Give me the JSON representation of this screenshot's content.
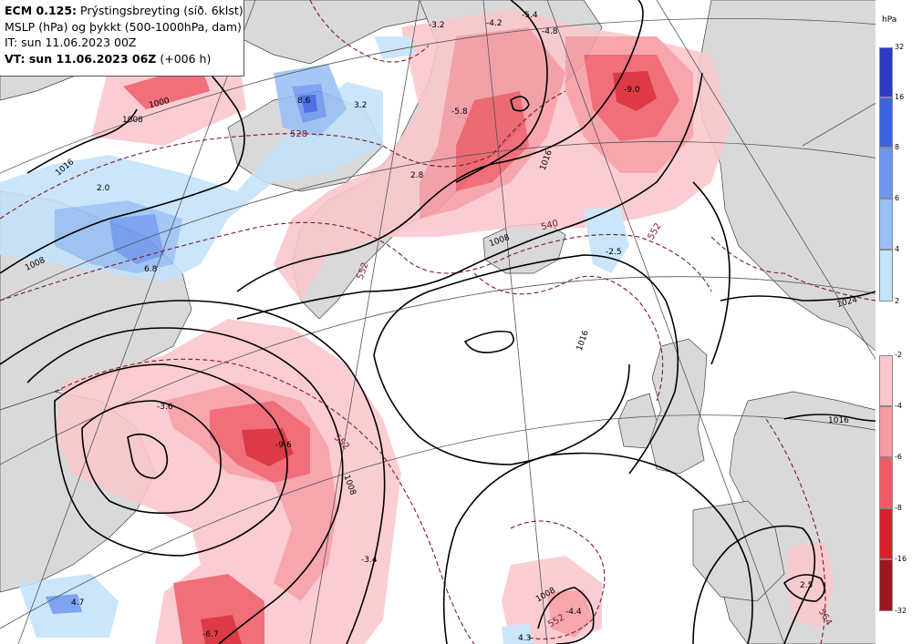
{
  "header": {
    "model": "ECM 0.125:",
    "field": "Prýstingsbreyting (síð. 6klst)",
    "subtitle": "MSLP (hPa) og þykkt (500-1000hPa, dam)",
    "init_time": "IT: sun 11.06.2023 00Z",
    "valid_prefix": "VT: sun 11.06.2023 06Z",
    "valid_offset": "(+006 h)"
  },
  "legend": {
    "unit": "hPa",
    "positive": {
      "ticks": [
        "32",
        "16",
        "8",
        "6",
        "4",
        "2"
      ],
      "colors": [
        "#2a3cc2",
        "#3d63e0",
        "#6e98ef",
        "#98c0f5",
        "#c4e2fb"
      ]
    },
    "negative": {
      "ticks": [
        "-2",
        "-4",
        "-6",
        "-8",
        "-16",
        "-32"
      ],
      "colors": [
        "#fbc7cc",
        "#f79aa3",
        "#ee5c68",
        "#d8202c",
        "#9a1820"
      ]
    }
  },
  "map_labels": {
    "pressure_change": [
      "-3.2",
      "-4.2",
      "-5.4",
      "-4.8",
      "8.6",
      "3.2",
      "-5.8",
      "-9.0",
      "2.0",
      "2.8",
      "6.8",
      "-2.5",
      "-3.6",
      "-9.6",
      "-3.4",
      "4.7",
      "-6.7",
      "-4.4",
      "4.3",
      "2.5"
    ],
    "isobars": [
      "1008",
      "1016",
      "1008",
      "1008",
      "1016",
      "1024",
      "1016",
      "1008",
      "1016",
      "1008",
      "1000"
    ],
    "thickness": [
      "528",
      "552",
      "540",
      "552",
      "552",
      "552",
      "564"
    ]
  },
  "colors": {
    "land": "#d9d9d9",
    "sea": "#ffffff",
    "isobar": "#000000",
    "thickness": "#7a1c2a",
    "gridline": "#555555"
  }
}
